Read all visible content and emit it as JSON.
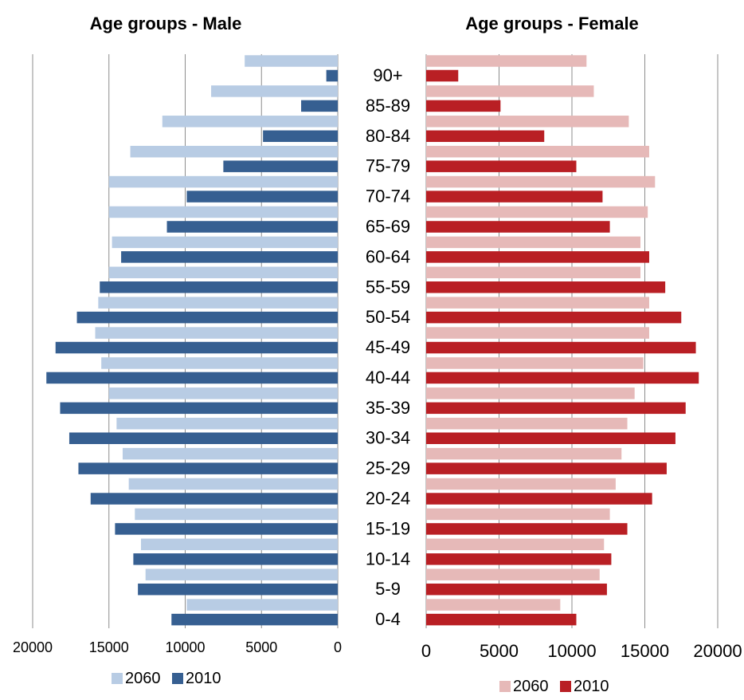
{
  "chart_data": [
    {
      "type": "bar",
      "title": "Age groups - Male",
      "orientation": "horizontal",
      "x_reversed": true,
      "xlim": [
        0,
        20000
      ],
      "xticks": [
        20000,
        15000,
        10000,
        5000,
        0
      ],
      "grid": true,
      "legend_position": "bottom",
      "categories": [
        "0-4",
        "5-9",
        "10-14",
        "15-19",
        "20-24",
        "25-29",
        "30-34",
        "35-39",
        "40-44",
        "45-49",
        "50-54",
        "55-59",
        "60-64",
        "65-69",
        "70-74",
        "75-79",
        "80-84",
        "85-89",
        "90+"
      ],
      "series": [
        {
          "name": "2060",
          "color": "#b8cce4",
          "values": [
            9900,
            12600,
            12900,
            13300,
            13700,
            14100,
            14500,
            15000,
            15500,
            15900,
            15700,
            15000,
            14800,
            15000,
            15000,
            13600,
            11500,
            8300,
            6100
          ]
        },
        {
          "name": "2010",
          "color": "#365f91",
          "values": [
            10900,
            13100,
            13400,
            14600,
            16200,
            17000,
            17600,
            18200,
            19100,
            18500,
            17100,
            15600,
            14200,
            11200,
            9900,
            7500,
            4900,
            2400,
            750
          ]
        }
      ]
    },
    {
      "type": "bar",
      "title": "Age groups - Female",
      "orientation": "horizontal",
      "x_reversed": false,
      "xlim": [
        0,
        20000
      ],
      "xticks": [
        0,
        5000,
        10000,
        15000,
        20000
      ],
      "grid": true,
      "legend_position": "bottom",
      "categories": [
        "0-4",
        "5-9",
        "10-14",
        "15-19",
        "20-24",
        "25-29",
        "30-34",
        "35-39",
        "40-44",
        "45-49",
        "50-54",
        "55-59",
        "60-64",
        "65-69",
        "70-74",
        "75-79",
        "80-84",
        "85-89",
        "90+"
      ],
      "series": [
        {
          "name": "2060",
          "color": "#e6b9b8",
          "values": [
            9200,
            11900,
            12200,
            12600,
            13000,
            13400,
            13800,
            14300,
            14900,
            15300,
            15300,
            14700,
            14700,
            15200,
            15700,
            15300,
            13900,
            11500,
            11000
          ]
        },
        {
          "name": "2010",
          "color": "#b91f24",
          "values": [
            10300,
            12400,
            12700,
            13800,
            15500,
            16500,
            17100,
            17800,
            18700,
            18500,
            17500,
            16400,
            15300,
            12600,
            12100,
            10300,
            8100,
            5100,
            2200
          ]
        }
      ]
    }
  ]
}
